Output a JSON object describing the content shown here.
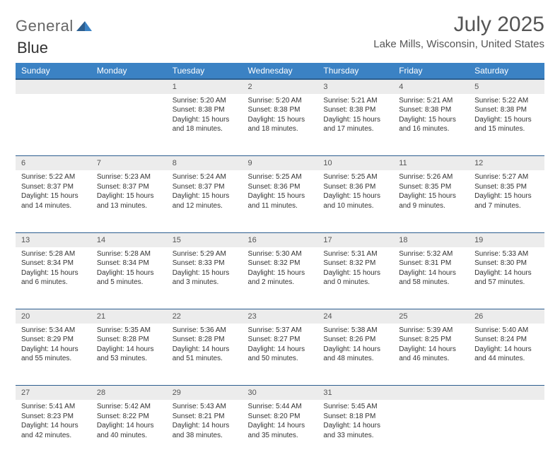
{
  "logo": {
    "word1": "General",
    "word2": "Blue"
  },
  "title": "July 2025",
  "location": "Lake Mills, Wisconsin, United States",
  "colors": {
    "header_bg": "#3b82c4",
    "header_border": "#2c5e8f",
    "daynum_bg": "#ececec",
    "logo_blue": "#3b7fc4"
  },
  "day_headers": [
    "Sunday",
    "Monday",
    "Tuesday",
    "Wednesday",
    "Thursday",
    "Friday",
    "Saturday"
  ],
  "weeks": [
    [
      {
        "n": "",
        "sr": "",
        "ss": "",
        "d1": "",
        "d2": ""
      },
      {
        "n": "",
        "sr": "",
        "ss": "",
        "d1": "",
        "d2": ""
      },
      {
        "n": "1",
        "sr": "Sunrise: 5:20 AM",
        "ss": "Sunset: 8:38 PM",
        "d1": "Daylight: 15 hours",
        "d2": "and 18 minutes."
      },
      {
        "n": "2",
        "sr": "Sunrise: 5:20 AM",
        "ss": "Sunset: 8:38 PM",
        "d1": "Daylight: 15 hours",
        "d2": "and 18 minutes."
      },
      {
        "n": "3",
        "sr": "Sunrise: 5:21 AM",
        "ss": "Sunset: 8:38 PM",
        "d1": "Daylight: 15 hours",
        "d2": "and 17 minutes."
      },
      {
        "n": "4",
        "sr": "Sunrise: 5:21 AM",
        "ss": "Sunset: 8:38 PM",
        "d1": "Daylight: 15 hours",
        "d2": "and 16 minutes."
      },
      {
        "n": "5",
        "sr": "Sunrise: 5:22 AM",
        "ss": "Sunset: 8:38 PM",
        "d1": "Daylight: 15 hours",
        "d2": "and 15 minutes."
      }
    ],
    [
      {
        "n": "6",
        "sr": "Sunrise: 5:22 AM",
        "ss": "Sunset: 8:37 PM",
        "d1": "Daylight: 15 hours",
        "d2": "and 14 minutes."
      },
      {
        "n": "7",
        "sr": "Sunrise: 5:23 AM",
        "ss": "Sunset: 8:37 PM",
        "d1": "Daylight: 15 hours",
        "d2": "and 13 minutes."
      },
      {
        "n": "8",
        "sr": "Sunrise: 5:24 AM",
        "ss": "Sunset: 8:37 PM",
        "d1": "Daylight: 15 hours",
        "d2": "and 12 minutes."
      },
      {
        "n": "9",
        "sr": "Sunrise: 5:25 AM",
        "ss": "Sunset: 8:36 PM",
        "d1": "Daylight: 15 hours",
        "d2": "and 11 minutes."
      },
      {
        "n": "10",
        "sr": "Sunrise: 5:25 AM",
        "ss": "Sunset: 8:36 PM",
        "d1": "Daylight: 15 hours",
        "d2": "and 10 minutes."
      },
      {
        "n": "11",
        "sr": "Sunrise: 5:26 AM",
        "ss": "Sunset: 8:35 PM",
        "d1": "Daylight: 15 hours",
        "d2": "and 9 minutes."
      },
      {
        "n": "12",
        "sr": "Sunrise: 5:27 AM",
        "ss": "Sunset: 8:35 PM",
        "d1": "Daylight: 15 hours",
        "d2": "and 7 minutes."
      }
    ],
    [
      {
        "n": "13",
        "sr": "Sunrise: 5:28 AM",
        "ss": "Sunset: 8:34 PM",
        "d1": "Daylight: 15 hours",
        "d2": "and 6 minutes."
      },
      {
        "n": "14",
        "sr": "Sunrise: 5:28 AM",
        "ss": "Sunset: 8:34 PM",
        "d1": "Daylight: 15 hours",
        "d2": "and 5 minutes."
      },
      {
        "n": "15",
        "sr": "Sunrise: 5:29 AM",
        "ss": "Sunset: 8:33 PM",
        "d1": "Daylight: 15 hours",
        "d2": "and 3 minutes."
      },
      {
        "n": "16",
        "sr": "Sunrise: 5:30 AM",
        "ss": "Sunset: 8:32 PM",
        "d1": "Daylight: 15 hours",
        "d2": "and 2 minutes."
      },
      {
        "n": "17",
        "sr": "Sunrise: 5:31 AM",
        "ss": "Sunset: 8:32 PM",
        "d1": "Daylight: 15 hours",
        "d2": "and 0 minutes."
      },
      {
        "n": "18",
        "sr": "Sunrise: 5:32 AM",
        "ss": "Sunset: 8:31 PM",
        "d1": "Daylight: 14 hours",
        "d2": "and 58 minutes."
      },
      {
        "n": "19",
        "sr": "Sunrise: 5:33 AM",
        "ss": "Sunset: 8:30 PM",
        "d1": "Daylight: 14 hours",
        "d2": "and 57 minutes."
      }
    ],
    [
      {
        "n": "20",
        "sr": "Sunrise: 5:34 AM",
        "ss": "Sunset: 8:29 PM",
        "d1": "Daylight: 14 hours",
        "d2": "and 55 minutes."
      },
      {
        "n": "21",
        "sr": "Sunrise: 5:35 AM",
        "ss": "Sunset: 8:28 PM",
        "d1": "Daylight: 14 hours",
        "d2": "and 53 minutes."
      },
      {
        "n": "22",
        "sr": "Sunrise: 5:36 AM",
        "ss": "Sunset: 8:28 PM",
        "d1": "Daylight: 14 hours",
        "d2": "and 51 minutes."
      },
      {
        "n": "23",
        "sr": "Sunrise: 5:37 AM",
        "ss": "Sunset: 8:27 PM",
        "d1": "Daylight: 14 hours",
        "d2": "and 50 minutes."
      },
      {
        "n": "24",
        "sr": "Sunrise: 5:38 AM",
        "ss": "Sunset: 8:26 PM",
        "d1": "Daylight: 14 hours",
        "d2": "and 48 minutes."
      },
      {
        "n": "25",
        "sr": "Sunrise: 5:39 AM",
        "ss": "Sunset: 8:25 PM",
        "d1": "Daylight: 14 hours",
        "d2": "and 46 minutes."
      },
      {
        "n": "26",
        "sr": "Sunrise: 5:40 AM",
        "ss": "Sunset: 8:24 PM",
        "d1": "Daylight: 14 hours",
        "d2": "and 44 minutes."
      }
    ],
    [
      {
        "n": "27",
        "sr": "Sunrise: 5:41 AM",
        "ss": "Sunset: 8:23 PM",
        "d1": "Daylight: 14 hours",
        "d2": "and 42 minutes."
      },
      {
        "n": "28",
        "sr": "Sunrise: 5:42 AM",
        "ss": "Sunset: 8:22 PM",
        "d1": "Daylight: 14 hours",
        "d2": "and 40 minutes."
      },
      {
        "n": "29",
        "sr": "Sunrise: 5:43 AM",
        "ss": "Sunset: 8:21 PM",
        "d1": "Daylight: 14 hours",
        "d2": "and 38 minutes."
      },
      {
        "n": "30",
        "sr": "Sunrise: 5:44 AM",
        "ss": "Sunset: 8:20 PM",
        "d1": "Daylight: 14 hours",
        "d2": "and 35 minutes."
      },
      {
        "n": "31",
        "sr": "Sunrise: 5:45 AM",
        "ss": "Sunset: 8:18 PM",
        "d1": "Daylight: 14 hours",
        "d2": "and 33 minutes."
      },
      {
        "n": "",
        "sr": "",
        "ss": "",
        "d1": "",
        "d2": ""
      },
      {
        "n": "",
        "sr": "",
        "ss": "",
        "d1": "",
        "d2": ""
      }
    ]
  ]
}
